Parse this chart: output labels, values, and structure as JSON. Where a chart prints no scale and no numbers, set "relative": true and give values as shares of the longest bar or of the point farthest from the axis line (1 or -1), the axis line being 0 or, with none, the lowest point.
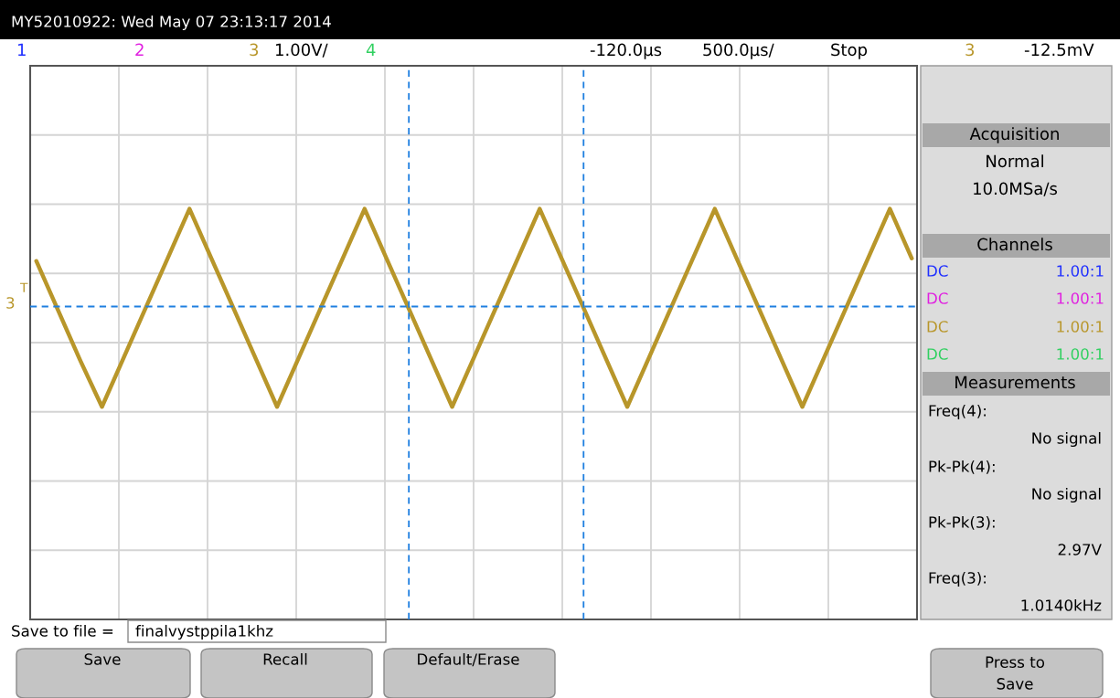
{
  "chart_data": {
    "type": "line",
    "categories": [
      null,
      null,
      null,
      null,
      null,
      null,
      null,
      null,
      null,
      null,
      null,
      null,
      null,
      null,
      null,
      null,
      null,
      null,
      null,
      null,
      null,
      null,
      null,
      null,
      null,
      null,
      null,
      null,
      null,
      null,
      null,
      null,
      null,
      null,
      null,
      null,
      null,
      null,
      null,
      null,
      null
    ],
    "series": [
      {
        "color": "#b8962a",
        "values": [
          0.61,
          0.24,
          -0.13,
          -0.48,
          -0.11,
          0.26,
          0.63,
          1,
          0.63,
          0.26,
          -0.11,
          -0.48,
          -0.11,
          0.26,
          0.63,
          1,
          0.63,
          0.26,
          -0.11,
          -0.48,
          -0.11,
          0.26,
          0.63,
          1,
          0.63,
          0.26,
          -0.11,
          -0.48,
          -0.11,
          0.26,
          0.63,
          1,
          0.63,
          0.26,
          -0.11,
          -0.48,
          -0.11,
          0.26,
          0.63,
          1,
          0.63
        ]
      }
    ],
    "relative": true,
    "grid": true,
    "line_style": "solid",
    "ref_lines": [
      {
        "axis": "y",
        "value": 0.27,
        "color": "#1e7fe0",
        "line_style": "dashed"
      }
    ],
    "annotations": [
      "MY52010922: Wed May 07 23:13:17 2014",
      "1",
      "2",
      "3",
      "1.00V/",
      "4",
      "-120.0µs",
      "500.0µs/",
      "Stop",
      "3",
      "-12.5mV",
      "3",
      "T",
      "Acquisition",
      "Normal",
      "10.0MSa/s",
      "Channels",
      "DC",
      "1.00:1",
      "DC",
      "1.00:1",
      "DC",
      "1.00:1",
      "DC",
      "1.00:1",
      "Measurements",
      "Freq(4):",
      "No signal",
      "Pk-Pk(4):",
      "No signal",
      "Pk-Pk(3):",
      "2.97V",
      "Freq(3):",
      "1.0140kHz",
      "Save to file =",
      "finalvystppila1khz",
      "Save",
      "Recall",
      "Default/Erase",
      "Press to\nSave"
    ]
  }
}
